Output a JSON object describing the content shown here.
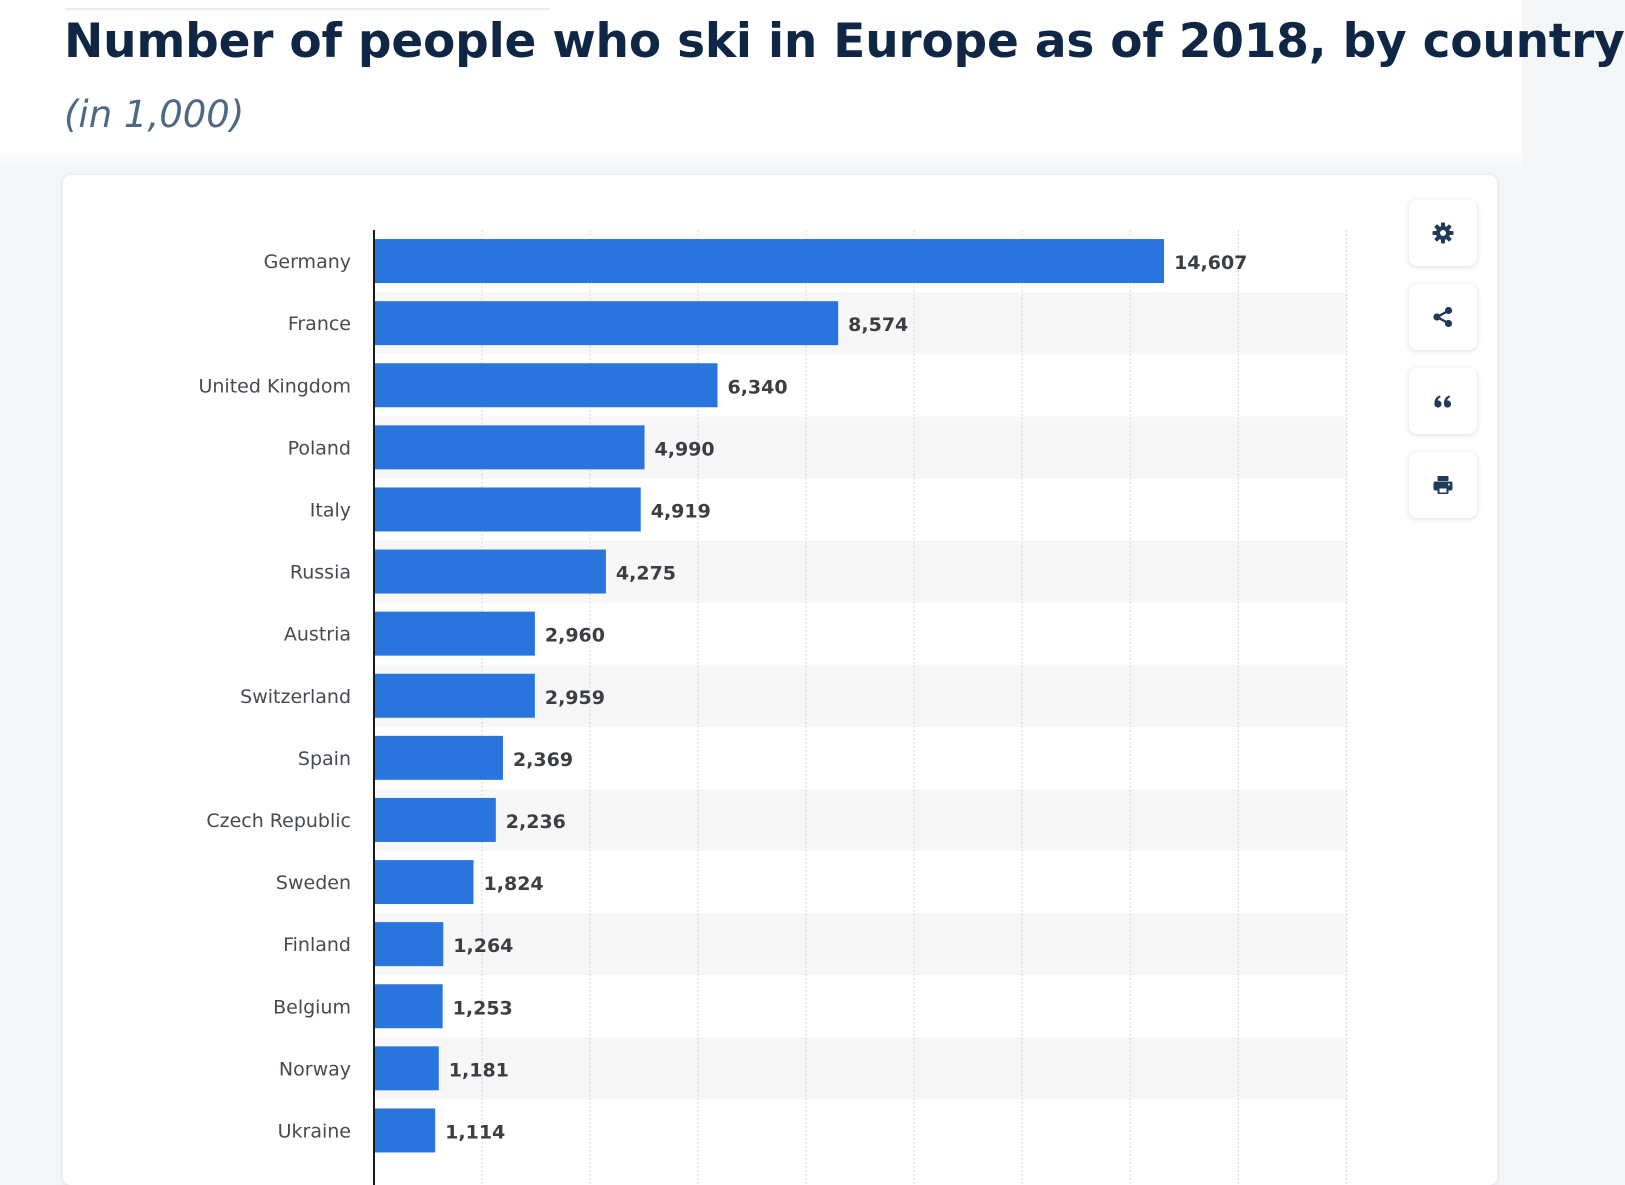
{
  "title": "Number of people who ski in Europe as of 2018, by country",
  "subtitle": "(in 1,000)",
  "colors": {
    "bar": "#2a75dd",
    "text": "#0f2744",
    "subtitle": "#4f6985",
    "icon": "#1f3a5a"
  },
  "toolbar": {
    "icons": [
      "gear-icon",
      "share-icon",
      "quote-icon",
      "print-icon"
    ]
  },
  "chart_data": {
    "type": "bar",
    "orientation": "horizontal",
    "title": "Number of people who ski in Europe as of 2018, by country",
    "subtitle": "(in 1,000)",
    "xlabel": "",
    "ylabel": "",
    "xlim": [
      0,
      18000
    ],
    "grid": true,
    "categories": [
      "Germany",
      "France",
      "United Kingdom",
      "Poland",
      "Italy",
      "Russia",
      "Austria",
      "Switzerland",
      "Spain",
      "Czech Republic",
      "Sweden",
      "Finland",
      "Belgium",
      "Norway",
      "Ukraine"
    ],
    "values": [
      14607,
      8574,
      6340,
      4990,
      4919,
      4275,
      2960,
      2959,
      2369,
      2236,
      1824,
      1264,
      1253,
      1181,
      1114
    ],
    "labels": [
      "14,607",
      "8,574",
      "6,340",
      "4,990",
      "4,919",
      "4,275",
      "2,960",
      "2,959",
      "2,369",
      "2,236",
      "1,824",
      "1,264",
      "1,253",
      "1,181",
      "1,114"
    ]
  }
}
